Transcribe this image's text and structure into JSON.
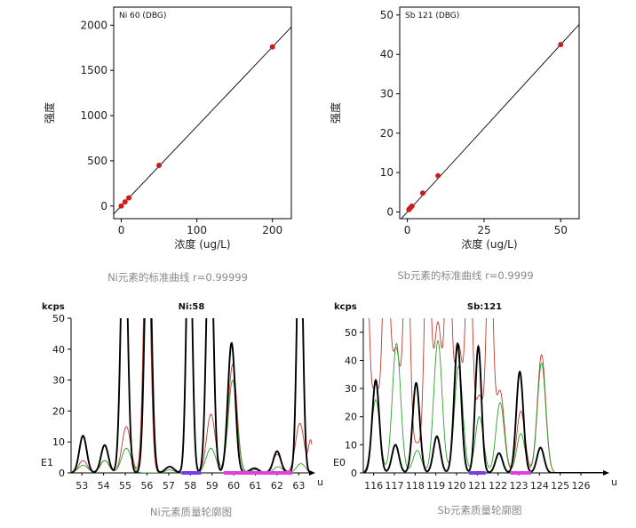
{
  "chart_data": [
    {
      "id": "cal_ni",
      "type": "scatter",
      "legend_label": "Ni 60 (DBG)",
      "xlabel": "浓度 (ug/L)",
      "ylabel": "强度",
      "xlim": [
        -10,
        225
      ],
      "ylim": [
        -140,
        2200
      ],
      "x_ticks": [
        0,
        100,
        200
      ],
      "x_tick_labels": [
        "0",
        "100",
        "200"
      ],
      "y_ticks": [
        0,
        500,
        1000,
        1500,
        2000
      ],
      "y_tick_labels": [
        "0",
        "500",
        "1000",
        "1500",
        "2000"
      ],
      "points": [
        {
          "x": 0,
          "y": 0
        },
        {
          "x": 5,
          "y": 45
        },
        {
          "x": 10,
          "y": 90
        },
        {
          "x": 50,
          "y": 450
        },
        {
          "x": 200,
          "y": 1760
        }
      ],
      "fit_line": {
        "slope": 8.8,
        "intercept": 0
      },
      "caption": "Ni元素的标准曲线 r=0.99999"
    },
    {
      "id": "cal_sb",
      "type": "scatter",
      "legend_label": "Sb 121 (DBG)",
      "xlabel": "浓度 (ug/L)",
      "ylabel": "强度",
      "xlim": [
        -2.5,
        56
      ],
      "ylim": [
        -1.7,
        52
      ],
      "x_ticks": [
        0,
        25,
        50
      ],
      "x_tick_labels": [
        "0",
        "25",
        "50"
      ],
      "y_ticks": [
        0,
        10,
        20,
        30,
        40,
        50
      ],
      "y_tick_labels": [
        "0",
        "10",
        "20",
        "30",
        "40",
        "50"
      ],
      "points": [
        {
          "x": 0.5,
          "y": 0.6
        },
        {
          "x": 1,
          "y": 1.1
        },
        {
          "x": 1.5,
          "y": 1.5
        },
        {
          "x": 5,
          "y": 4.8
        },
        {
          "x": 10,
          "y": 9.2
        },
        {
          "x": 50,
          "y": 42.5
        }
      ],
      "fit_line": {
        "slope": 0.85,
        "intercept": 0
      },
      "caption": "Sb元素的标准曲线 r=0.9999"
    },
    {
      "id": "prof_ni",
      "type": "line",
      "title": "Ni:58",
      "unit_label": "kcps",
      "corner_label": "E1",
      "x_unit": "u",
      "xlim": [
        52.5,
        63.6
      ],
      "ylim": [
        0,
        50
      ],
      "x_ticks": [
        53,
        54,
        55,
        56,
        57,
        58,
        59,
        60,
        61,
        62,
        63
      ],
      "y_ticks": [
        0,
        10,
        20,
        30,
        40,
        50
      ],
      "y_tick_labels": [
        "0",
        "10",
        "20",
        "30",
        "40",
        "50"
      ],
      "series": [
        {
          "name": "black",
          "color": "#000000",
          "peaks": [
            [
              53.05,
              12,
              0.17
            ],
            [
              54.05,
              9,
              0.17
            ],
            [
              54.95,
              90,
              0.15
            ],
            [
              56.05,
              90,
              0.15
            ],
            [
              57.05,
              2,
              0.2
            ],
            [
              57.95,
              90,
              0.13
            ],
            [
              58.9,
              90,
              0.15
            ],
            [
              59.9,
              42,
              0.17
            ],
            [
              60.95,
              1.5,
              0.2
            ],
            [
              62.0,
              7,
              0.17
            ],
            [
              63.05,
              90,
              0.13
            ]
          ]
        },
        {
          "name": "red",
          "color": "#c0392b",
          "peaks": [
            [
              53.05,
              4,
              0.2
            ],
            [
              54.05,
              4,
              0.2
            ],
            [
              55.05,
              15,
              0.2
            ],
            [
              56.0,
              90,
              0.15
            ],
            [
              57.05,
              2,
              0.2
            ],
            [
              57.95,
              90,
              0.13
            ],
            [
              58.95,
              19,
              0.2
            ],
            [
              59.95,
              35,
              0.2
            ],
            [
              60.95,
              1.5,
              0.2
            ],
            [
              62.0,
              6,
              0.2
            ],
            [
              63.05,
              16,
              0.2
            ],
            [
              63.55,
              10,
              0.1
            ]
          ]
        },
        {
          "name": "green",
          "color": "#2ca02c",
          "peaks": [
            [
              53.05,
              2.5,
              0.22
            ],
            [
              54.05,
              4,
              0.22
            ],
            [
              55.05,
              8,
              0.22
            ],
            [
              57.05,
              1,
              0.2
            ],
            [
              57.95,
              90,
              0.13
            ],
            [
              58.95,
              8,
              0.22
            ],
            [
              59.95,
              30,
              0.2
            ],
            [
              61.0,
              1,
              0.2
            ],
            [
              62.05,
              2,
              0.2
            ],
            [
              63.1,
              3,
              0.2
            ]
          ]
        }
      ],
      "bars": [
        {
          "x0": 57.6,
          "x1": 58.5,
          "color": "#7a3de0"
        },
        {
          "x0": 59.55,
          "x1": 62.7,
          "color": "#e040e0"
        }
      ],
      "caption": "Ni元素质量轮廓图"
    },
    {
      "id": "prof_sb",
      "type": "line",
      "title": "Sb:121",
      "unit_label": "kcps",
      "corner_label": "E0",
      "x_unit": "u",
      "xlim": [
        115.5,
        127.2
      ],
      "ylim": [
        0,
        55
      ],
      "x_ticks": [
        116,
        117,
        118,
        119,
        120,
        121,
        122,
        123,
        124,
        125,
        126
      ],
      "y_ticks": [
        0,
        10,
        20,
        30,
        40,
        50
      ],
      "y_tick_labels": [
        "0",
        "10",
        "20",
        "30",
        "40",
        "50"
      ],
      "series": [
        {
          "name": "black",
          "color": "#000000",
          "peaks": [
            [
              116.1,
              33,
              0.17
            ],
            [
              117.05,
              10,
              0.17
            ],
            [
              118.05,
              32,
              0.17
            ],
            [
              119.05,
              13,
              0.17
            ],
            [
              120.05,
              46,
              0.17
            ],
            [
              121.05,
              45,
              0.15
            ],
            [
              122.05,
              7,
              0.17
            ],
            [
              123.05,
              36,
              0.17
            ],
            [
              124.05,
              9,
              0.17
            ]
          ]
        },
        {
          "name": "red",
          "color": "#c0392b",
          "peaks": [
            [
              115.6,
              90,
              0.17
            ],
            [
              116.1,
              29,
              0.17
            ],
            [
              116.6,
              90,
              0.17
            ],
            [
              117.1,
              43,
              0.2
            ],
            [
              117.6,
              90,
              0.15
            ],
            [
              118.1,
              10,
              0.2
            ],
            [
              118.6,
              90,
              0.15
            ],
            [
              119.1,
              53,
              0.2
            ],
            [
              119.6,
              90,
              0.15
            ],
            [
              120.1,
              45,
              0.2
            ],
            [
              120.6,
              90,
              0.15
            ],
            [
              121.1,
              27,
              0.2
            ],
            [
              121.6,
              90,
              0.15
            ],
            [
              122.1,
              29,
              0.2
            ],
            [
              123.1,
              22,
              0.2
            ],
            [
              124.1,
              42,
              0.2
            ]
          ]
        },
        {
          "name": "green",
          "color": "#2ca02c",
          "peaks": [
            [
              116.1,
              26,
              0.2
            ],
            [
              117.1,
              46,
              0.2
            ],
            [
              118.1,
              8,
              0.2
            ],
            [
              119.1,
              47,
              0.2
            ],
            [
              120.1,
              38,
              0.2
            ],
            [
              121.1,
              20,
              0.2
            ],
            [
              122.1,
              25,
              0.2
            ],
            [
              123.1,
              14,
              0.2
            ],
            [
              124.1,
              39,
              0.2
            ]
          ]
        }
      ],
      "bars": [
        {
          "x0": 120.6,
          "x1": 121.4,
          "color": "#7a3de0"
        },
        {
          "x0": 122.6,
          "x1": 123.6,
          "color": "#e040e0"
        }
      ],
      "caption": "Sb元素质量轮廓图"
    }
  ]
}
